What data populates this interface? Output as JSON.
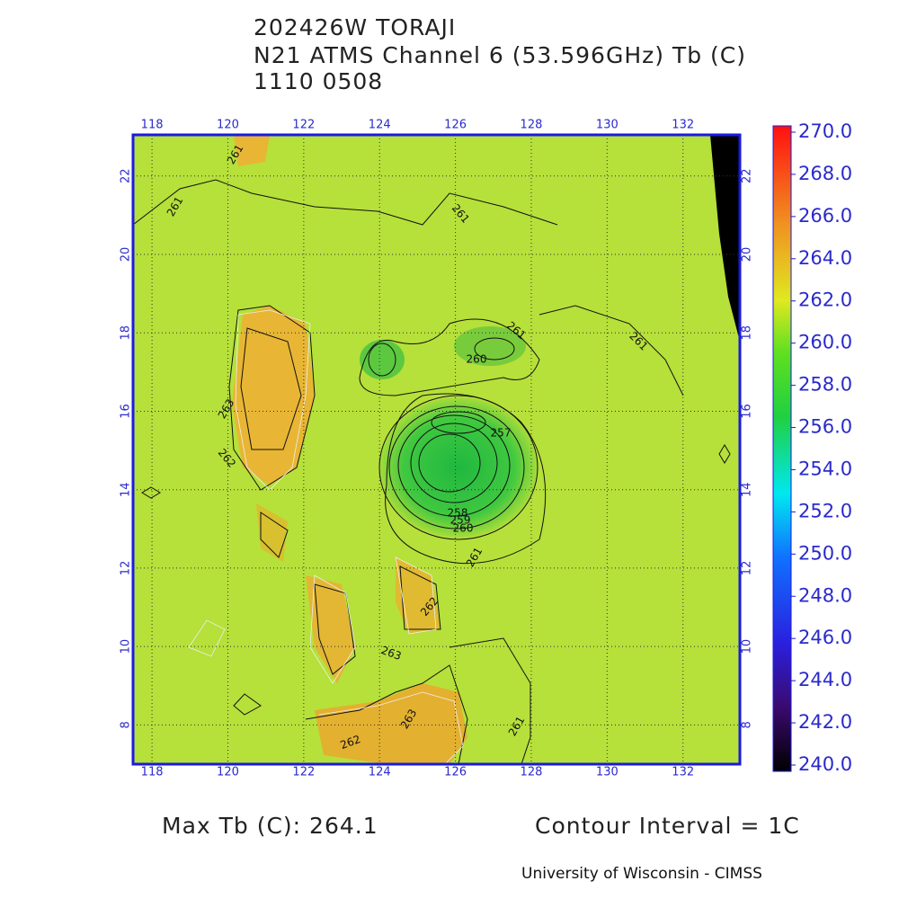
{
  "title_lines": [
    "202426W TORAJI",
    "N21 ATMS Channel 6 (53.596GHz) Tb (C)",
    "1110 0508"
  ],
  "chart_data": {
    "type": "map",
    "xlim": [
      117.5,
      133.5
    ],
    "ylim": [
      7,
      23.05
    ],
    "xticks": [
      118,
      120,
      122,
      124,
      126,
      128,
      130,
      132
    ],
    "yticks": [
      8,
      10,
      12,
      14,
      16,
      18,
      20,
      22
    ],
    "grid": true,
    "colorbar": {
      "lim": [
        240,
        270
      ],
      "ticks": [
        {
          "value": 240,
          "label": "240.0"
        },
        {
          "value": 242,
          "label": "242.0"
        },
        {
          "value": 244,
          "label": "244.0"
        },
        {
          "value": 246,
          "label": "246.0"
        },
        {
          "value": 248,
          "label": "248.0"
        },
        {
          "value": 250,
          "label": "250.0"
        },
        {
          "value": 252,
          "label": "252.0"
        },
        {
          "value": 254,
          "label": "254.0"
        },
        {
          "value": 256,
          "label": "256.0"
        },
        {
          "value": 258,
          "label": "258.0"
        },
        {
          "value": 260,
          "label": "260.0"
        },
        {
          "value": 262,
          "label": "262.0"
        },
        {
          "value": 264,
          "label": "264.0"
        },
        {
          "value": 266,
          "label": "266.0"
        },
        {
          "value": 268,
          "label": "268.0"
        },
        {
          "value": 270,
          "label": "270.0"
        }
      ]
    },
    "contour_labels": [
      "261",
      "261",
      "261",
      "261",
      "260",
      "261",
      "263",
      "262",
      "257",
      "258",
      "259",
      "260",
      "261",
      "262",
      "263",
      "263",
      "262",
      "261"
    ]
  },
  "footer": {
    "max_tb": "Max Tb (C): 264.1",
    "contour_interval": "Contour Interval = 1C",
    "credit": "University of Wisconsin - CIMSS"
  }
}
